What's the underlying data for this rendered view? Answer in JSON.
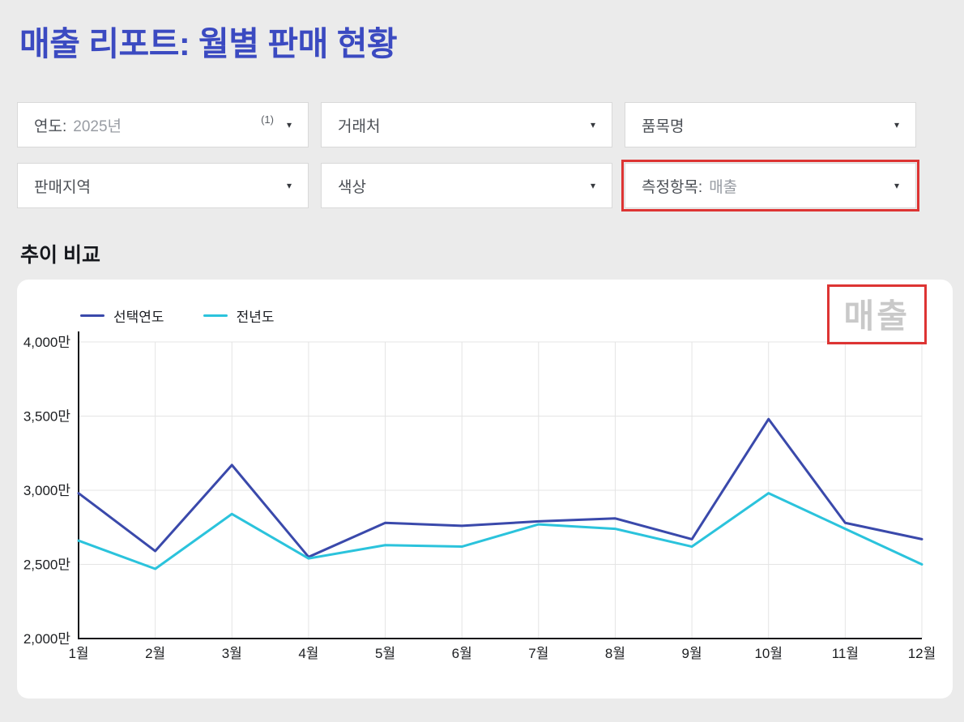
{
  "page": {
    "title": "매출 리포트: 월별 판매 현황"
  },
  "filters": {
    "year": {
      "label": "연도:",
      "value": "2025년",
      "count": "(1)"
    },
    "customer": {
      "label": "거래처",
      "value": "",
      "count": ""
    },
    "item": {
      "label": "품목명",
      "value": "",
      "count": ""
    },
    "region": {
      "label": "판매지역",
      "value": "",
      "count": ""
    },
    "color": {
      "label": "색상",
      "value": "",
      "count": ""
    },
    "measure": {
      "label": "측정항목:",
      "value": "매출",
      "count": ""
    }
  },
  "section": {
    "title": "추이 비교"
  },
  "chart_data": {
    "type": "line",
    "title": "매출",
    "categories": [
      "1월",
      "2월",
      "3월",
      "4월",
      "5월",
      "6월",
      "7월",
      "8월",
      "9월",
      "10월",
      "11월",
      "12월"
    ],
    "series": [
      {
        "name": "선택연도",
        "color": "#3a49ab",
        "values": [
          2980,
          2590,
          3170,
          2550,
          2780,
          2760,
          2790,
          2810,
          2670,
          3480,
          2780,
          2670
        ]
      },
      {
        "name": "전년도",
        "color": "#2bc3dc",
        "values": [
          2660,
          2470,
          2840,
          2540,
          2630,
          2620,
          2770,
          2740,
          2620,
          2980,
          2740,
          2500
        ]
      }
    ],
    "unit": "만",
    "ylim": [
      2000,
      4000
    ],
    "yticks": [
      {
        "value": 2000,
        "label": "2,000만"
      },
      {
        "value": 2500,
        "label": "2,500만"
      },
      {
        "value": 3000,
        "label": "3,000만"
      },
      {
        "value": 3500,
        "label": "3,500만"
      },
      {
        "value": 4000,
        "label": "4,000만"
      }
    ],
    "grid": true,
    "legend_position": "top-left"
  },
  "colors": {
    "accent_title": "#3b4ac1",
    "highlight_red": "#dd3433",
    "series_selected_year": "#3a49ab",
    "series_previous_year": "#2bc3dc",
    "background": "#ebebeb",
    "watermark_gray": "#c9c9c9"
  }
}
